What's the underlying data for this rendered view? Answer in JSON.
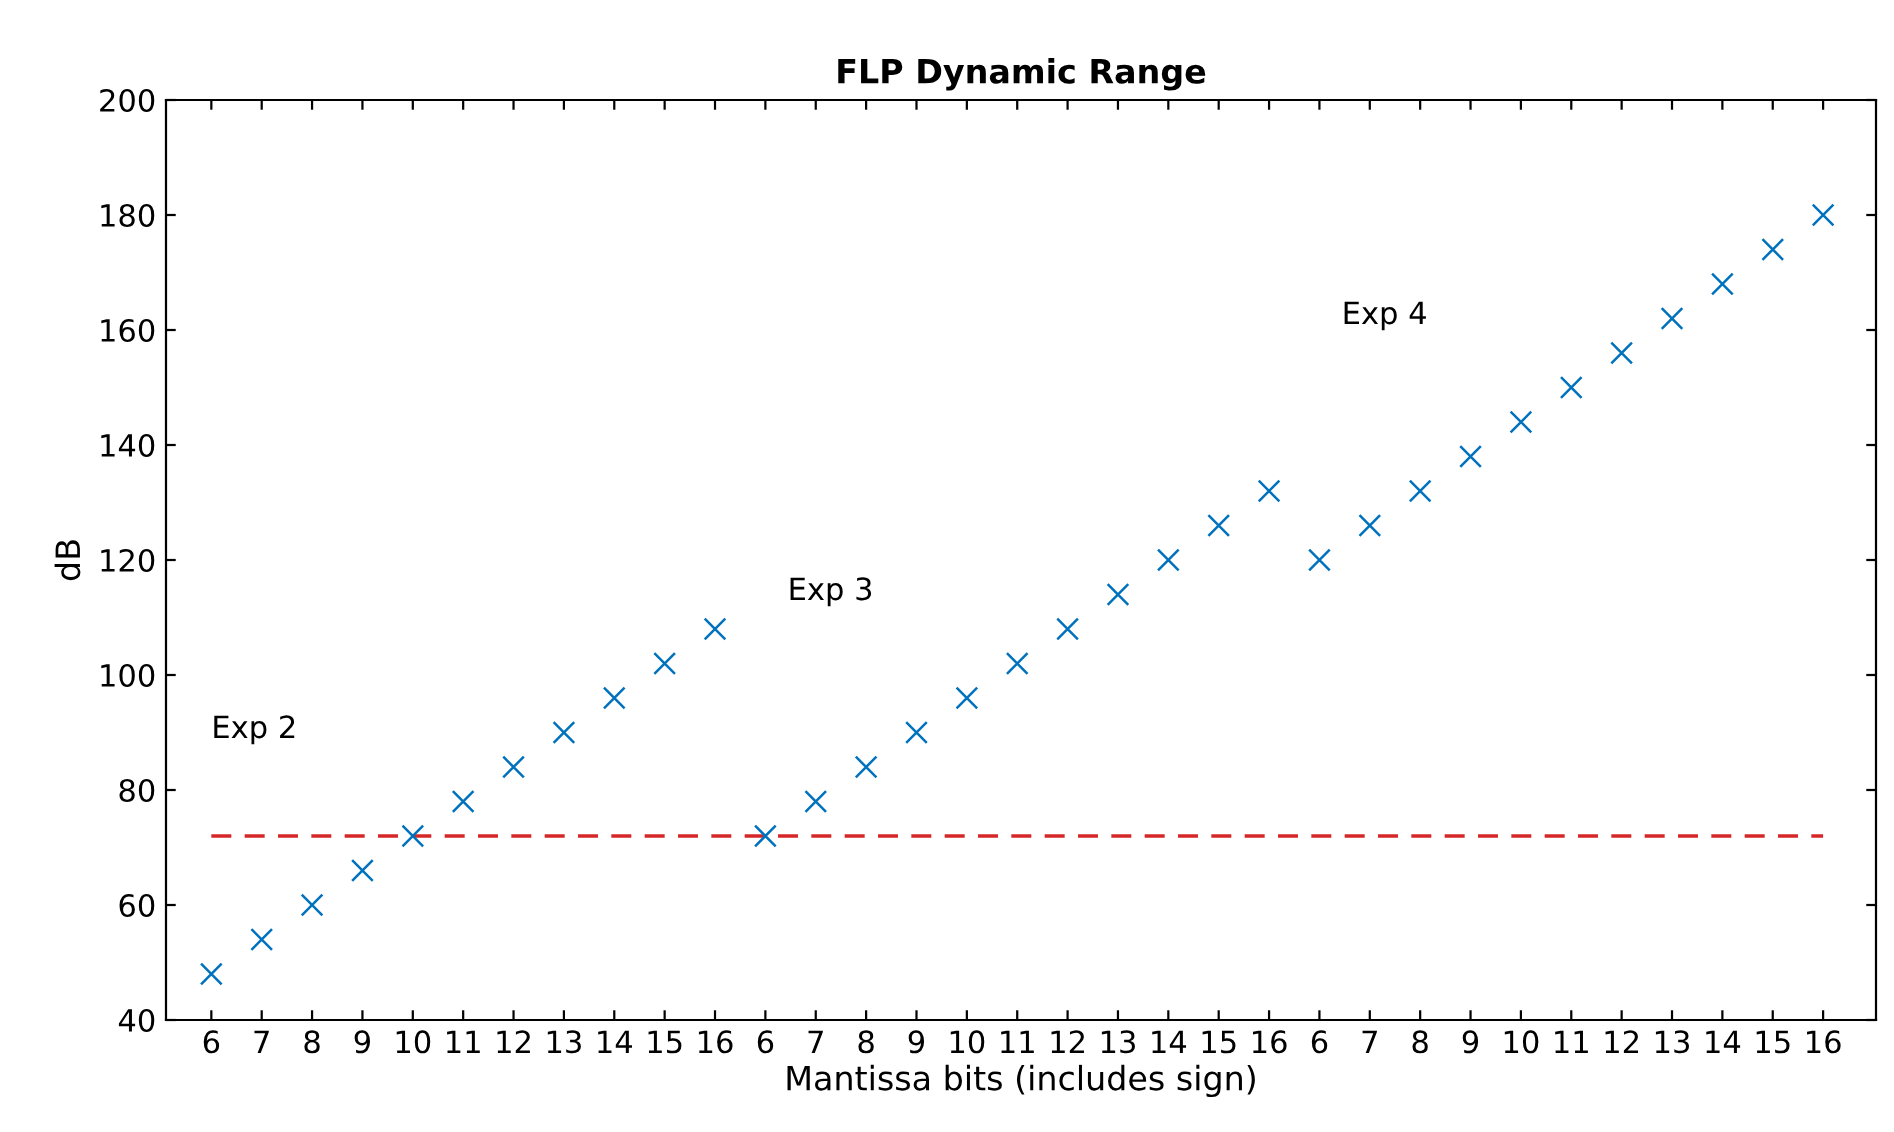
{
  "chart_data": {
    "type": "scatter",
    "title": "FLP Dynamic Range",
    "xlabel": "Mantissa bits (includes sign)",
    "ylabel": "dB",
    "categories": [
      "6",
      "7",
      "8",
      "9",
      "10",
      "11",
      "12",
      "13",
      "14",
      "15",
      "16",
      "6",
      "7",
      "8",
      "9",
      "10",
      "11",
      "12",
      "13",
      "14",
      "15",
      "16",
      "6",
      "7",
      "8",
      "9",
      "10",
      "11",
      "12",
      "13",
      "14",
      "15",
      "16"
    ],
    "series": [
      {
        "color": "#0072bd",
        "values": [
          48,
          54,
          60,
          66,
          72,
          78,
          84,
          90,
          96,
          102,
          108,
          null,
          null,
          null,
          null,
          null,
          null,
          null,
          null,
          null,
          null,
          null,
          null,
          null,
          null,
          null,
          null,
          null,
          null,
          null,
          null,
          null,
          null
        ]
      },
      {
        "color": "#0072bd",
        "values": [
          null,
          null,
          null,
          null,
          null,
          null,
          null,
          null,
          null,
          null,
          null,
          72,
          78,
          84,
          90,
          96,
          102,
          108,
          114,
          120,
          126,
          132,
          null,
          null,
          null,
          null,
          null,
          null,
          null,
          null,
          null,
          null,
          null
        ]
      },
      {
        "color": "#0072bd",
        "values": [
          null,
          null,
          null,
          null,
          null,
          null,
          null,
          null,
          null,
          null,
          null,
          null,
          null,
          null,
          null,
          null,
          null,
          null,
          null,
          null,
          null,
          null,
          120,
          126,
          132,
          138,
          144,
          150,
          156,
          162,
          168,
          174,
          180
        ]
      }
    ],
    "ylim": [
      40,
      200
    ],
    "yticks": [
      40,
      60,
      80,
      100,
      120,
      140,
      160,
      180,
      200
    ],
    "ref_lines": [
      {
        "axis": "y",
        "value": 72,
        "color": "#d62728",
        "line_style": "dashed"
      }
    ],
    "marker": "cross",
    "annotations": [
      "Exp 2",
      "Exp 3",
      "Exp 4"
    ],
    "grid": false,
    "legend": false
  }
}
